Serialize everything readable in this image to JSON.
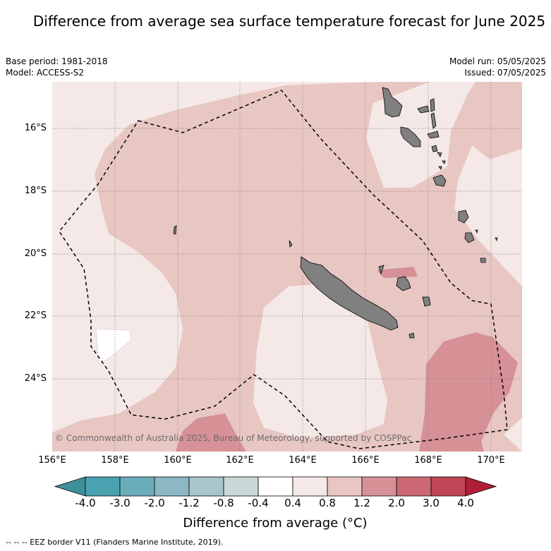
{
  "title": "Difference from average sea surface temperature forecast for June 2025",
  "meta": {
    "base_period": "Base period: 1981-2018",
    "model": "Model: ACCESS-S2",
    "model_run": "Model run: 05/05/2025",
    "issued": "Issued: 07/05/2025"
  },
  "credit": "© Commonwealth of Australia 2025, Bureau of Meteorology, supported by COSPPac",
  "axes": {
    "lat_ticks": [
      "16°S",
      "18°S",
      "20°S",
      "22°S",
      "24°S"
    ],
    "lon_ticks": [
      "156°E",
      "158°E",
      "160°E",
      "162°E",
      "164°E",
      "166°E",
      "168°E",
      "170°E"
    ]
  },
  "colorbar": {
    "labels": [
      "-4.0",
      "-3.0",
      "-2.0",
      "-1.2",
      "-0.8",
      "-0.4",
      "0.4",
      "0.8",
      "1.2",
      "2.0",
      "3.0",
      "4.0"
    ],
    "colors": [
      "#3f8f9a",
      "#4aa2b0",
      "#6aaebb",
      "#8bb8c3",
      "#a8c6cb",
      "#cbd8da",
      "#ffffff",
      "#f5e9e8",
      "#e8c7c3",
      "#d69196",
      "#cb6873",
      "#c04656",
      "#b01e38"
    ],
    "title": "Difference from average (°C)"
  },
  "footer": "--  --  -- EEZ border V11 (Flanders Marine Institute, 2019)."
}
